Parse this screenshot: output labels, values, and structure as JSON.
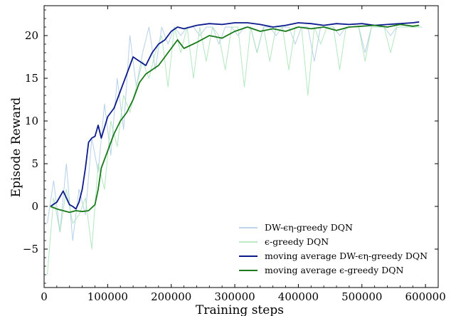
{
  "chart_data": {
    "type": "line",
    "xlabel": "Training steps",
    "ylabel": "Episode Reward",
    "xlim": [
      0,
      620000
    ],
    "ylim": [
      -9.5,
      23.5
    ],
    "x_ticks": [
      0,
      100000,
      200000,
      300000,
      400000,
      500000,
      600000
    ],
    "x_tick_labels": [
      "0",
      "100000",
      "200000",
      "300000",
      "400000",
      "500000",
      "600000"
    ],
    "y_ticks": [
      -5,
      0,
      5,
      10,
      15,
      20
    ],
    "y_tick_labels": [
      "−5",
      "0",
      "5",
      "10",
      "15",
      "20"
    ],
    "grid": false,
    "legend_position": "lower-right",
    "series": [
      {
        "name": "DW-ϵη-greedy DQN",
        "color": "#aac8e6",
        "style": "raw",
        "x": [
          5000,
          15000,
          25000,
          35000,
          45000,
          55000,
          65000,
          75000,
          85000,
          95000,
          105000,
          115000,
          125000,
          135000,
          145000,
          155000,
          165000,
          175000,
          185000,
          195000,
          205000,
          215000,
          225000,
          235000,
          245000,
          255000,
          265000,
          275000,
          285000,
          295000,
          305000,
          315000,
          325000,
          335000,
          345000,
          355000,
          365000,
          375000,
          385000,
          395000,
          405000,
          415000,
          425000,
          435000,
          445000,
          455000,
          465000,
          475000,
          485000,
          495000,
          505000,
          515000,
          525000,
          535000,
          545000,
          555000,
          565000,
          575000,
          585000,
          595000
        ],
        "y": [
          -2,
          3,
          -3,
          5,
          -4,
          2,
          -1,
          8,
          4,
          12,
          6,
          15,
          9,
          20,
          14,
          18,
          21,
          16,
          21,
          19,
          21,
          20,
          21,
          21,
          20,
          21,
          21,
          19,
          21,
          21,
          20,
          21,
          21,
          18,
          21,
          21,
          20,
          21,
          21,
          19,
          21,
          21,
          17,
          21,
          21,
          21,
          20,
          21,
          21,
          21,
          18,
          21,
          21,
          21,
          20,
          21,
          21,
          21,
          21,
          21
        ]
      },
      {
        "name": "ϵ-greedy DQN",
        "color": "#a6e3b4",
        "style": "raw",
        "x": [
          5000,
          15000,
          25000,
          35000,
          45000,
          55000,
          65000,
          75000,
          85000,
          95000,
          105000,
          115000,
          125000,
          135000,
          145000,
          155000,
          165000,
          175000,
          185000,
          195000,
          205000,
          215000,
          225000,
          235000,
          245000,
          255000,
          265000,
          275000,
          285000,
          295000,
          305000,
          315000,
          325000,
          335000,
          345000,
          355000,
          365000,
          375000,
          385000,
          395000,
          405000,
          415000,
          425000,
          435000,
          445000,
          455000,
          465000,
          475000,
          485000,
          495000,
          505000,
          515000,
          525000,
          535000,
          545000,
          555000,
          565000,
          575000,
          585000,
          595000
        ],
        "y": [
          -8,
          1,
          -3,
          2,
          -2,
          -1,
          1,
          -5,
          5,
          2,
          10,
          7,
          13,
          11,
          14,
          17,
          15,
          18,
          20,
          14,
          21,
          18,
          21,
          15,
          21,
          17,
          21,
          20,
          16,
          21,
          21,
          14,
          21,
          18,
          21,
          17,
          21,
          21,
          16,
          21,
          21,
          13,
          21,
          19,
          21,
          21,
          16,
          21,
          21,
          21,
          17,
          21,
          21,
          21,
          18,
          21,
          21,
          21,
          21,
          21
        ]
      },
      {
        "name": "moving average DW-ϵη-greedy DQN",
        "color": "#0b1b8c",
        "style": "smooth",
        "x": [
          10000,
          20000,
          30000,
          35000,
          40000,
          45000,
          50000,
          55000,
          60000,
          65000,
          70000,
          75000,
          80000,
          85000,
          90000,
          100000,
          110000,
          120000,
          130000,
          140000,
          150000,
          160000,
          170000,
          180000,
          190000,
          200000,
          210000,
          220000,
          240000,
          260000,
          280000,
          300000,
          320000,
          340000,
          360000,
          380000,
          400000,
          420000,
          440000,
          460000,
          480000,
          500000,
          520000,
          540000,
          560000,
          580000,
          590000
        ],
        "y": [
          0,
          0.5,
          1.8,
          1.0,
          0.2,
          0.0,
          -0.3,
          0.5,
          2.0,
          4.5,
          7.5,
          8.0,
          8.2,
          9.5,
          8.0,
          10.5,
          11.5,
          13.5,
          15.5,
          17.5,
          17.0,
          16.5,
          18.0,
          19.0,
          19.5,
          20.5,
          21.0,
          20.8,
          21.2,
          21.4,
          21.3,
          21.5,
          21.5,
          21.3,
          21.0,
          21.2,
          21.5,
          21.4,
          21.2,
          21.4,
          21.3,
          21.4,
          21.2,
          21.3,
          21.4,
          21.5,
          21.6
        ]
      },
      {
        "name": "moving average ϵ-greedy DQN",
        "color": "#187a18",
        "style": "smooth",
        "x": [
          10000,
          20000,
          30000,
          40000,
          50000,
          60000,
          70000,
          80000,
          85000,
          90000,
          100000,
          110000,
          120000,
          130000,
          140000,
          150000,
          160000,
          170000,
          180000,
          190000,
          200000,
          210000,
          220000,
          240000,
          260000,
          280000,
          300000,
          320000,
          340000,
          360000,
          380000,
          400000,
          420000,
          440000,
          460000,
          480000,
          500000,
          520000,
          540000,
          560000,
          580000,
          590000
        ],
        "y": [
          0,
          -0.3,
          -0.5,
          -0.7,
          -0.5,
          -0.6,
          -0.5,
          0.2,
          2.0,
          4.5,
          6.5,
          8.5,
          10.0,
          11.0,
          12.5,
          14.5,
          15.5,
          16.0,
          16.5,
          17.5,
          18.5,
          19.5,
          18.5,
          19.2,
          20.0,
          19.7,
          20.5,
          21.0,
          20.5,
          20.8,
          20.5,
          21.0,
          20.8,
          21.0,
          20.6,
          21.0,
          21.1,
          21.2,
          21.0,
          21.3,
          21.1,
          21.2
        ]
      }
    ]
  }
}
